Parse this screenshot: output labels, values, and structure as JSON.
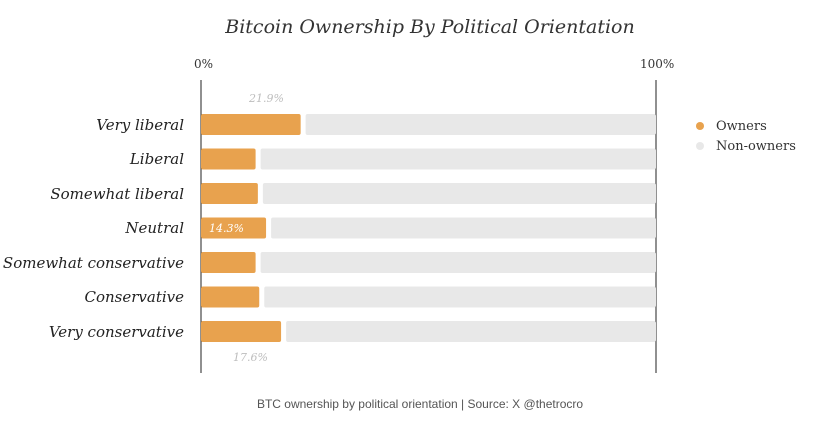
{
  "chart_data": {
    "type": "bar",
    "orientation": "horizontal",
    "stacked": true,
    "title": "Bitcoin Ownership By Political Orientation",
    "x_ticks": [
      "0%",
      "100%"
    ],
    "xlim": [
      0,
      100
    ],
    "categories": [
      "Very liberal",
      "Liberal",
      "Somewhat liberal",
      "Neutral",
      "Somewhat conservative",
      "Conservative",
      "Very conservative"
    ],
    "series": [
      {
        "name": "Owners",
        "color": "#e8a24e",
        "values": [
          21.9,
          12.0,
          12.5,
          14.3,
          12.0,
          12.8,
          17.6
        ]
      },
      {
        "name": "Non-owners",
        "color": "#e8e8e8",
        "values": [
          78.1,
          88.0,
          87.5,
          85.7,
          88.0,
          87.2,
          82.4
        ]
      }
    ],
    "annotations": [
      {
        "category": "Very liberal",
        "text": "21.9%",
        "position": "above"
      },
      {
        "category": "Neutral",
        "text": "14.3%",
        "position": "inside"
      },
      {
        "category": "Very conservative",
        "text": "17.6%",
        "position": "below"
      }
    ],
    "legend_position": "right",
    "caption": "BTC ownership by political orientation | Source: X @thetrocro"
  }
}
